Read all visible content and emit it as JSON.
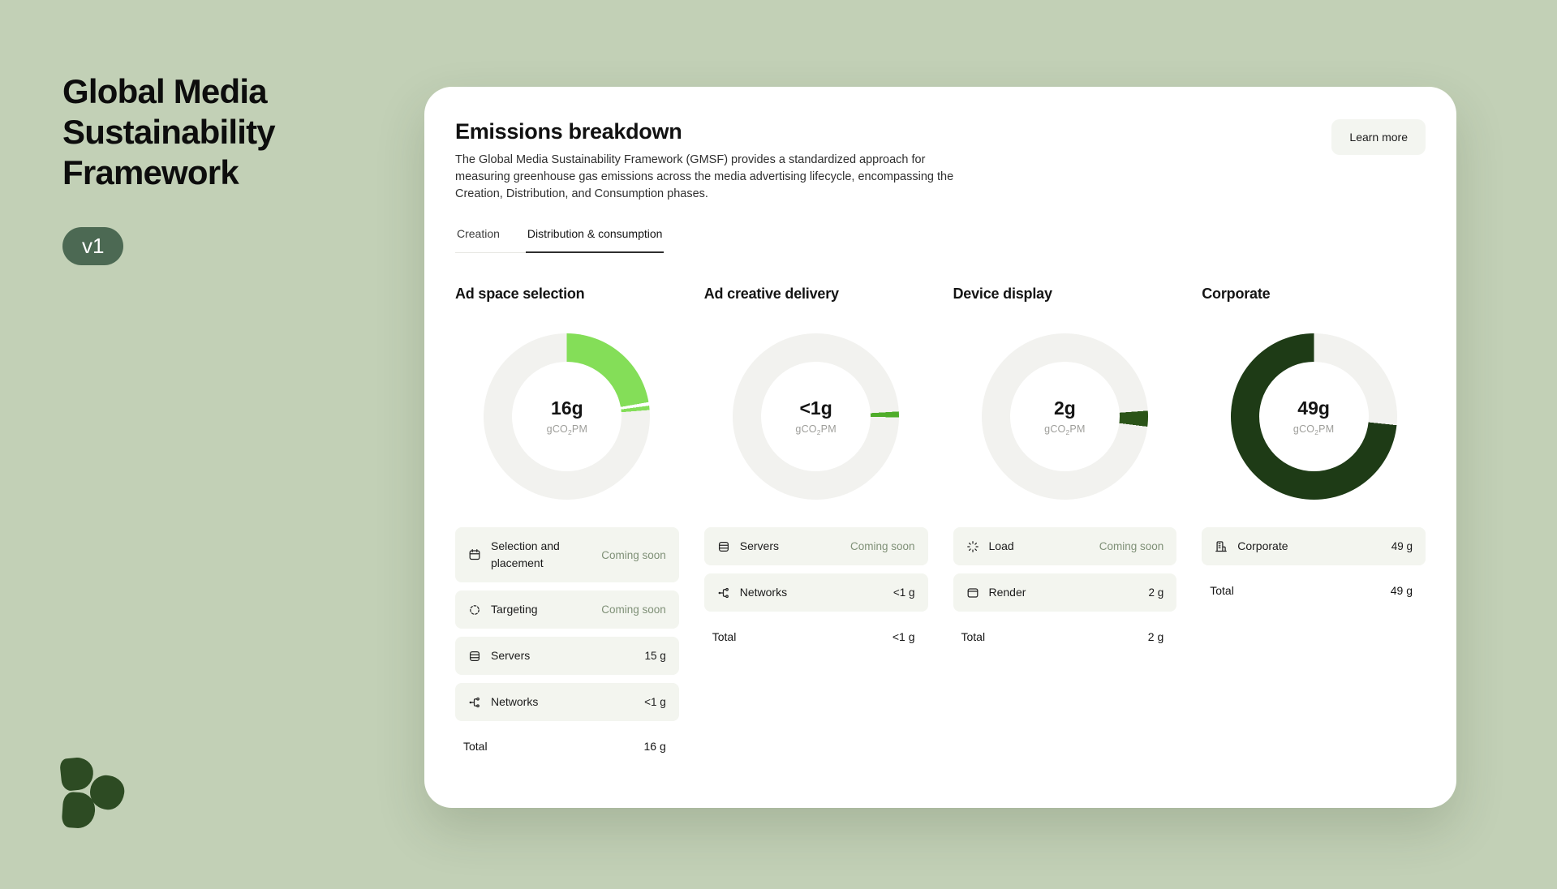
{
  "page": {
    "title_lines": [
      "Global Media",
      "Sustainability",
      "Framework"
    ],
    "version_badge": "v1",
    "background_color": "#c2d0b6",
    "badge_color": "#4c6953",
    "logo_color": "#2d4b23"
  },
  "card": {
    "heading": "Emissions breakdown",
    "description": "The Global Media Sustainability Framework (GMSF) provides a standardized approach for measuring greenhouse gas emissions across the media advertising lifecycle, encompassing the Creation, Distribution, and Consumption phases.",
    "learn_more_label": "Learn more",
    "tabs": [
      {
        "label": "Creation",
        "active": false
      },
      {
        "label": "Distribution & consumption",
        "active": true
      }
    ],
    "unit": {
      "pre": "gCO",
      "sub": "2",
      "post": "PM"
    }
  },
  "chart_data": [
    {
      "type": "donut",
      "title": "Ad space selection",
      "center_value": "16g",
      "center_unit": "gCO2PM",
      "items": [
        {
          "label": "Selection and placement",
          "value": "Coming soon"
        },
        {
          "label": "Targeting",
          "value": "Coming soon"
        },
        {
          "label": "Servers",
          "value": "15 g"
        },
        {
          "label": "Networks",
          "value": "<1 g"
        }
      ],
      "total": "16 g",
      "track_color": "#f2f2ef",
      "segments_deg": [
        [
          0,
          80,
          "#84de58"
        ],
        [
          80,
          82.5,
          "#ffffff"
        ],
        [
          82.5,
          85.5,
          "#84de58"
        ]
      ]
    },
    {
      "type": "donut",
      "title": "Ad creative delivery",
      "center_value": "<1g",
      "center_unit": "gCO2PM",
      "items": [
        {
          "label": "Servers",
          "value": "Coming soon"
        },
        {
          "label": "Networks",
          "value": "<1 g"
        }
      ],
      "total": "<1 g",
      "track_color": "#f2f2ef",
      "segments_deg": [
        [
          86.5,
          90.5,
          "#4fad2a"
        ]
      ]
    },
    {
      "type": "donut",
      "title": "Device display",
      "center_value": "2g",
      "center_unit": "gCO2PM",
      "items": [
        {
          "label": "Load",
          "value": "Coming soon"
        },
        {
          "label": "Render",
          "value": "2 g"
        }
      ],
      "total": "2 g",
      "track_color": "#f2f2ef",
      "segments_deg": [
        [
          86,
          97,
          "#2b5418"
        ]
      ]
    },
    {
      "type": "donut",
      "title": "Corporate",
      "center_value": "49g",
      "center_unit": "gCO2PM",
      "items": [
        {
          "label": "Corporate",
          "value": "49 g"
        }
      ],
      "total": "49 g",
      "track_color": "#f2f2ef",
      "segments_deg": [
        [
          96,
          360,
          "#1e3b16"
        ]
      ]
    }
  ],
  "columns": [
    {
      "title": "Ad space selection",
      "rows": [
        {
          "icon": "calendar-icon",
          "label": "Selection and placement",
          "value": "Coming soon",
          "muted": true
        },
        {
          "icon": "target-icon",
          "label": "Targeting",
          "value": "Coming soon",
          "muted": true
        },
        {
          "icon": "database-icon",
          "label": "Servers",
          "value": "15 g",
          "muted": false
        },
        {
          "icon": "network-icon",
          "label": "Networks",
          "value": "<1 g",
          "muted": false
        }
      ],
      "total_label": "Total",
      "total_value": "16 g"
    },
    {
      "title": "Ad creative delivery",
      "rows": [
        {
          "icon": "database-icon",
          "label": "Servers",
          "value": "Coming soon",
          "muted": true
        },
        {
          "icon": "network-icon",
          "label": "Networks",
          "value": "<1 g",
          "muted": false
        }
      ],
      "total_label": "Total",
      "total_value": "<1 g"
    },
    {
      "title": "Device display",
      "rows": [
        {
          "icon": "loader-icon",
          "label": "Load",
          "value": "Coming soon",
          "muted": true
        },
        {
          "icon": "window-icon",
          "label": "Render",
          "value": "2 g",
          "muted": false
        }
      ],
      "total_label": "Total",
      "total_value": "2 g"
    },
    {
      "title": "Corporate",
      "rows": [
        {
          "icon": "building-icon",
          "label": "Corporate",
          "value": "49 g",
          "muted": false
        }
      ],
      "total_label": "Total",
      "total_value": "49 g"
    }
  ],
  "colors": {
    "row_background": "#f3f5ef",
    "coming_soon_text": "#7f9077",
    "donut_track": "#f2f2ef",
    "donut_bright_green": "#84de58",
    "donut_medium_green": "#4fad2a",
    "donut_dark_green": "#2b5418",
    "donut_darkest_green": "#1e3b16"
  }
}
